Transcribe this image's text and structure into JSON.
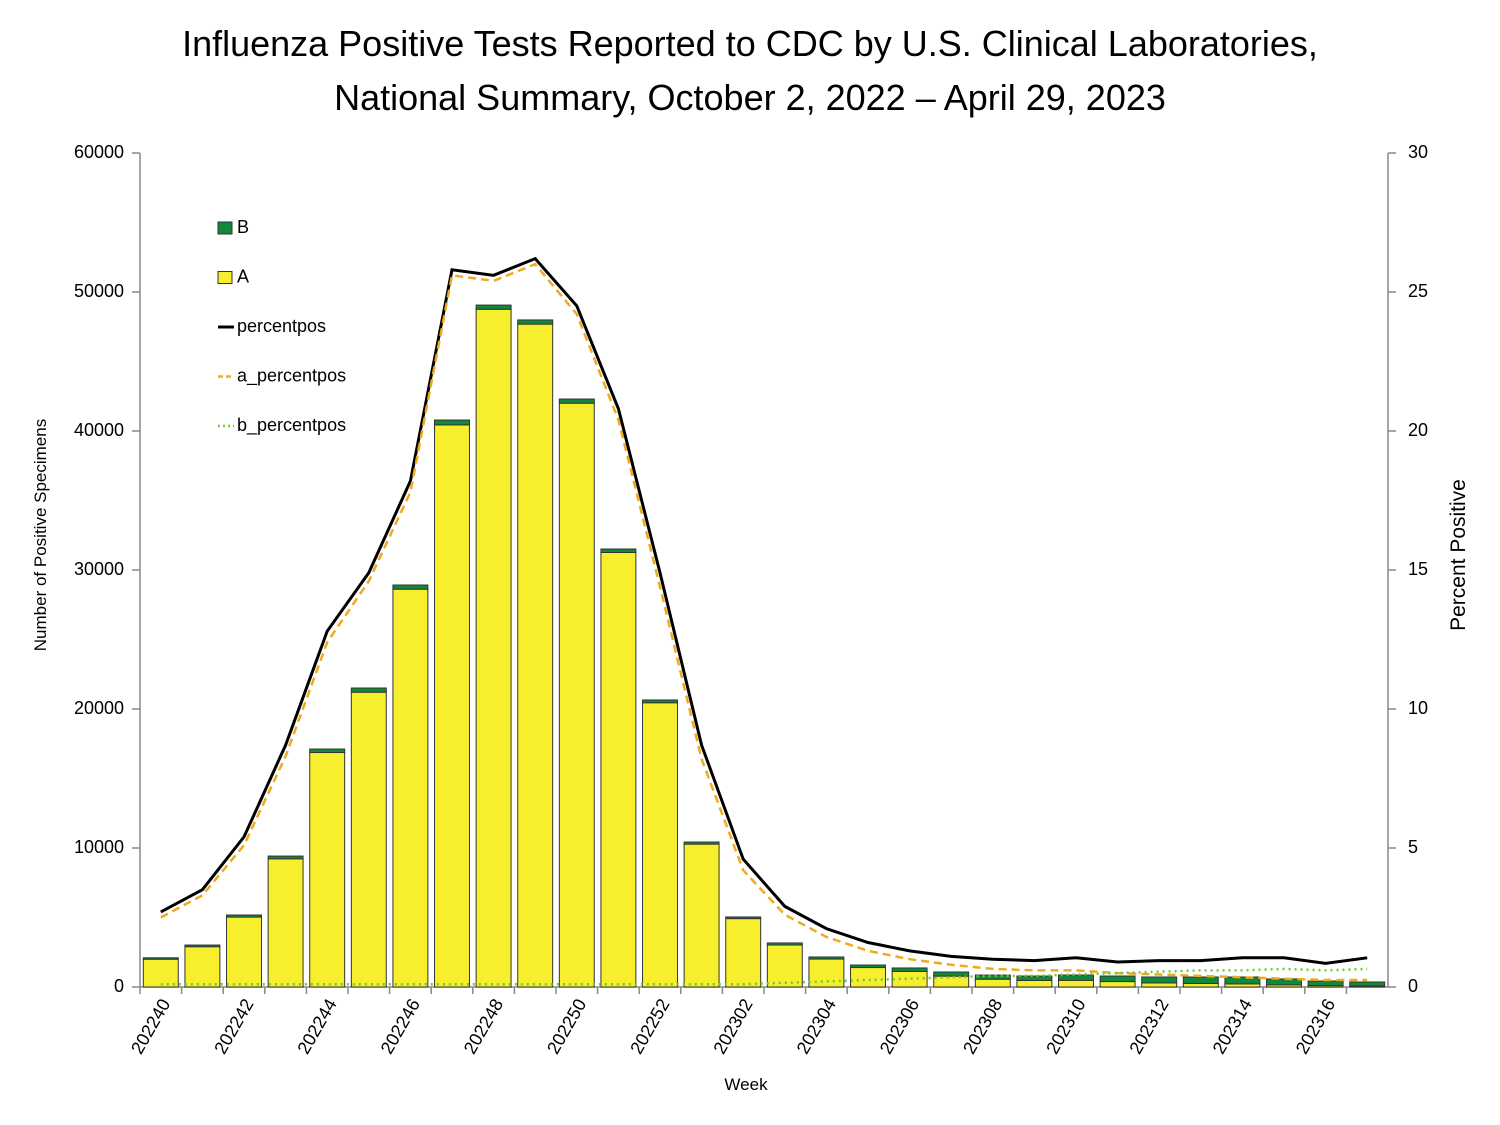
{
  "chart_data": {
    "type": "bar",
    "title": [
      "Influenza Positive Tests Reported to CDC by U.S. Clinical Laboratories,",
      "National Summary, October 2, 2022 – April 29, 2023"
    ],
    "x_label": "Week",
    "y_label": "Number of Positive Specimens",
    "y2_label": "Percent Positive",
    "categories": [
      "202240",
      null,
      "202242",
      null,
      "202244",
      null,
      "202246",
      null,
      "202248",
      null,
      "202250",
      null,
      "202252",
      null,
      "202302",
      null,
      "202304",
      null,
      "202306",
      null,
      "202308",
      null,
      "202310",
      null,
      "202312",
      null,
      "202314",
      null,
      "202316",
      null
    ],
    "ylim": [
      0,
      60000
    ],
    "yticks": [
      0,
      10000,
      20000,
      30000,
      40000,
      50000,
      60000
    ],
    "y2lim": [
      0,
      30
    ],
    "y2ticks": [
      0,
      5,
      10,
      15,
      20,
      25,
      30
    ],
    "legend": "upper left",
    "stacked": true,
    "series": [
      {
        "name": "B",
        "type": "bar",
        "color": "#12893a",
        "values": [
          100,
          120,
          150,
          200,
          250,
          300,
          300,
          350,
          300,
          300,
          300,
          250,
          200,
          150,
          120,
          150,
          150,
          180,
          250,
          300,
          300,
          320,
          380,
          400,
          430,
          470,
          500,
          430,
          330,
          280
        ]
      },
      {
        "name": "A",
        "type": "bar",
        "color": "#f7ef2e",
        "values": [
          2000,
          2900,
          5030,
          9220,
          16870,
          21210,
          28620,
          40440,
          48760,
          47690,
          42000,
          31260,
          20450,
          10280,
          4920,
          3020,
          2010,
          1400,
          1120,
          780,
          560,
          470,
          480,
          390,
          290,
          250,
          220,
          150,
          100,
          80
        ]
      },
      {
        "name": "percentpos",
        "type": "line",
        "axis": "y2",
        "color": "#000000",
        "style": "solid",
        "values": [
          2.7,
          3.5,
          5.4,
          8.7,
          12.8,
          14.9,
          18.2,
          25.8,
          25.6,
          26.2,
          24.5,
          20.8,
          14.9,
          8.7,
          4.6,
          2.9,
          2.1,
          1.6,
          1.3,
          1.1,
          1.0,
          0.95,
          1.05,
          0.9,
          0.95,
          0.95,
          1.05,
          1.05,
          0.85,
          1.05
        ]
      },
      {
        "name": "a_percentpos",
        "type": "line",
        "axis": "y2",
        "color": "#f0aa1e",
        "style": "dashed",
        "values": [
          2.5,
          3.3,
          5.1,
          8.3,
          12.4,
          14.6,
          17.8,
          25.6,
          25.4,
          26.0,
          24.2,
          20.4,
          14.4,
          8.2,
          4.2,
          2.6,
          1.8,
          1.3,
          1.0,
          0.8,
          0.65,
          0.6,
          0.6,
          0.5,
          0.45,
          0.4,
          0.35,
          0.3,
          0.25,
          0.25
        ]
      },
      {
        "name": "b_percentpos",
        "type": "line",
        "axis": "y2",
        "color": "#66cc33",
        "style": "dotted",
        "values": [
          0.1,
          0.1,
          0.1,
          0.1,
          0.1,
          0.1,
          0.1,
          0.1,
          0.1,
          0.1,
          0.1,
          0.1,
          0.1,
          0.1,
          0.1,
          0.15,
          0.2,
          0.25,
          0.3,
          0.35,
          0.4,
          0.4,
          0.45,
          0.5,
          0.55,
          0.6,
          0.6,
          0.65,
          0.6,
          0.65
        ]
      }
    ]
  }
}
